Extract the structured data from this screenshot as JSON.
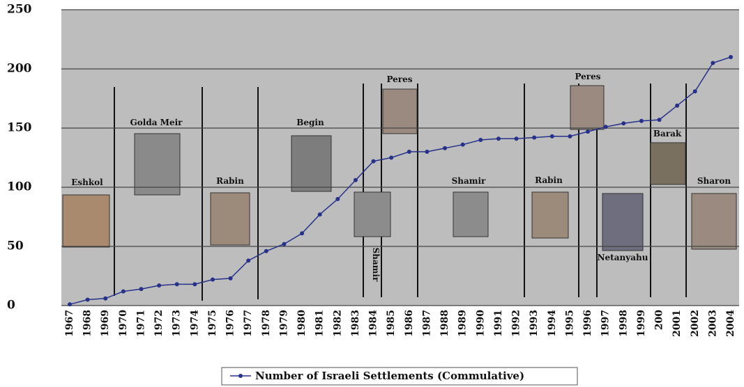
{
  "chart_data": {
    "type": "line",
    "categories": [
      "1967",
      "1968",
      "1969",
      "1970",
      "1971",
      "1972",
      "1973",
      "1974",
      "1975",
      "1976",
      "1977",
      "1978",
      "1979",
      "1980",
      "1981",
      "1982",
      "1983",
      "1984",
      "1985",
      "1986",
      "1987",
      "1988",
      "1989",
      "1990",
      "1991",
      "1992",
      "1993",
      "1994",
      "1995",
      "1996",
      "1997",
      "1998",
      "1999",
      "200",
      "2001",
      "2002",
      "2003",
      "2004"
    ],
    "series": [
      {
        "name": "Number of Israeli Settlements (Commulative)",
        "color": "#27318a",
        "values": [
          1,
          5,
          6,
          12,
          14,
          17,
          18,
          18,
          22,
          23,
          38,
          46,
          52,
          61,
          77,
          90,
          106,
          122,
          125,
          130,
          130,
          133,
          136,
          140,
          141,
          141,
          142,
          143,
          143,
          147,
          151,
          154,
          156,
          157,
          169,
          181,
          205,
          210
        ]
      }
    ],
    "ylim": [
      0,
      250
    ],
    "yticks": [
      0,
      50,
      100,
      150,
      200,
      250
    ],
    "grid": true,
    "annotations": [
      "Eshkol",
      "Golda Meir",
      "Rabin",
      "Begin",
      "Shamir",
      "Peres",
      "Shamir",
      "Rabin",
      "Peres",
      "Netanyahu",
      "Barak",
      "Sharon"
    ]
  }
}
